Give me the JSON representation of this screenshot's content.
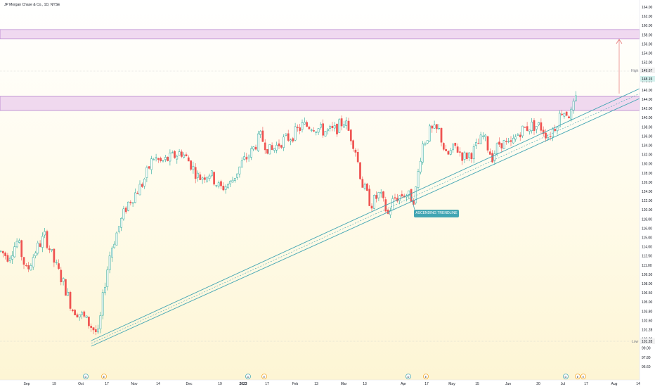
{
  "symbol_title": "JP Morgan Chase & Co., 1D, NYSE",
  "annotation": "ASCENDING TRENDLINE",
  "markers": {
    "high_label": "High",
    "high_value": "149.67",
    "last_price": "148.15",
    "low_label": "Low",
    "low_value": "101.28"
  },
  "colors": {
    "up": "#26a69a",
    "down": "#ef5350",
    "channel": "#42a5b3",
    "zone_fill": "#ecd0ee",
    "zone_stroke": "#a060c0",
    "background_top": "#ffffff",
    "background_bottom": "#fdf7d9",
    "arrow": "#e57373"
  },
  "chart_data": {
    "type": "candlestick",
    "title": "JP Morgan Chase & Co., 1D, NYSE",
    "ylim": [
      96,
      164
    ],
    "y_ticks": [
      "164.00",
      "162.00",
      "160.00",
      "158.00",
      "156.00",
      "154.00",
      "152.00",
      "150.00",
      "148.00",
      "146.00",
      "144.00",
      "142.00",
      "140.00",
      "138.00",
      "136.00",
      "134.00",
      "132.00",
      "130.00",
      "128.00",
      "126.00",
      "124.00",
      "122.00",
      "120.00",
      "118.00",
      "116.00",
      "115.00",
      "114.00",
      "112.50",
      "111.00",
      "109.50",
      "108.00",
      "106.50",
      "105.00",
      "103.80",
      "102.60",
      "101.28",
      "100.20",
      "99.00",
      "97.80",
      "96.60"
    ],
    "x_ticks": [
      "Sep",
      "19",
      "Oct",
      "17",
      "Nov",
      "14",
      "Dec",
      "19",
      "2023",
      "17",
      "Feb",
      "13",
      "Mar",
      "13",
      "Apr",
      "17",
      "May",
      "15",
      "Jun",
      "20",
      "Jul",
      "17",
      "Aug",
      "14"
    ],
    "resistance_zones": [
      [
        141.5,
        144.5
      ],
      [
        156.5,
        158.3
      ]
    ],
    "trendline_channel": {
      "start": [
        "Oct 13 2022",
        101.3
      ],
      "end": [
        "Jul 21 2023",
        143.5
      ]
    },
    "target_arrow": {
      "from": 143.5,
      "to": 157
    }
  }
}
